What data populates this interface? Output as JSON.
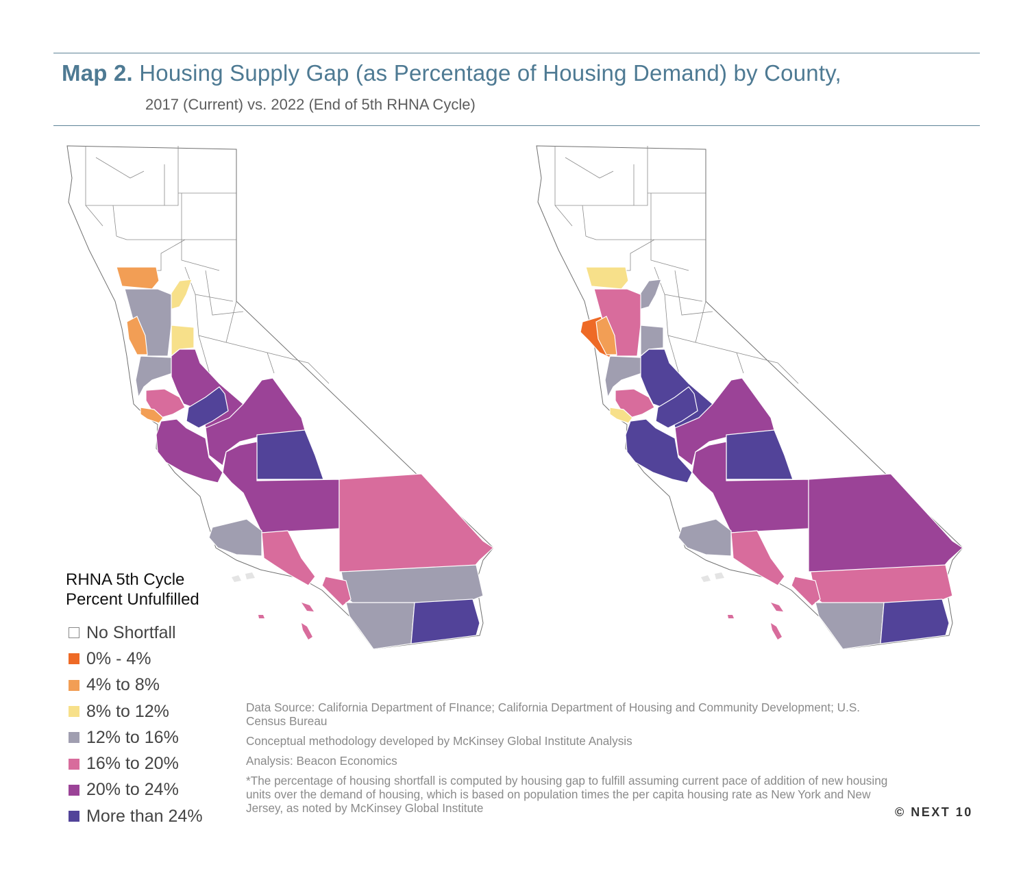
{
  "header": {
    "map_label": "Map 2.",
    "title": "Housing Supply Gap (as Percentage of Housing Demand) by County,",
    "subtitle": "2017 (Current) vs. 2022 (End of 5th RHNA Cycle)"
  },
  "colors": {
    "accent": "#4e7a93",
    "none": "#ffffff",
    "c0_4": "#ee6a26",
    "c4_8": "#f29e55",
    "c8_12": "#f7e08a",
    "c12_16": "#a09eb0",
    "c16_20": "#d86c9c",
    "c20_24": "#9b4397",
    "c24p": "#524399"
  },
  "legend": {
    "title_line1": "RHNA 5th Cycle",
    "title_line2": "Percent Unfulfilled",
    "items": [
      {
        "label": "No Shortfall",
        "color": "#ffffff"
      },
      {
        "label": "0% - 4%",
        "color": "#ee6a26"
      },
      {
        "label": "4% to 8%",
        "color": "#f29e55"
      },
      {
        "label": "8% to 12%",
        "color": "#f7e08a"
      },
      {
        "label": "12% to 16%",
        "color": "#a09eb0"
      },
      {
        "label": "16% to 20%",
        "color": "#d86c9c"
      },
      {
        "label": "20% to 24%",
        "color": "#9b4397"
      },
      {
        "label": "More than 24%",
        "color": "#524399"
      }
    ]
  },
  "notes": {
    "source": "Data Source: California Department of FInance; California Department of Housing and Community Development; U.S. Census Bureau",
    "methodology": "Conceptual methodology developed by McKinsey Global Institute Analysis",
    "analysis": "Analysis: Beacon Economics",
    "footnote": "*The percentage of housing shortfall is computed by housing gap to fulfill assuming current pace of addition of new housing units over the demand of housing, which is based on population times the per capita housing rate as New York and New Jersey, as noted by McKinsey Global Institute"
  },
  "copyright": "© NEXT 10",
  "maps": [
    {
      "id": "2017",
      "regions": [
        {
          "name": "north-coast-county",
          "cls": "c4_8"
        },
        {
          "name": "foothill-county",
          "cls": "c8_12"
        },
        {
          "name": "sacramento-valley-county",
          "cls": "c12_16"
        },
        {
          "name": "sacramento-county",
          "cls": "c8_12"
        },
        {
          "name": "napa-county",
          "cls": "c4_8"
        },
        {
          "name": "bay-area-north-county",
          "cls": "c12_16"
        },
        {
          "name": "san-joaquin-county",
          "cls": "c20_24"
        },
        {
          "name": "santa-clara-county",
          "cls": "c16_20"
        },
        {
          "name": "santa-cruz-county",
          "cls": "c4_8"
        },
        {
          "name": "merced-county",
          "cls": "c24p"
        },
        {
          "name": "fresno-county",
          "cls": "c20_24"
        },
        {
          "name": "central-coast-county",
          "cls": "c20_24"
        },
        {
          "name": "tulare-county",
          "cls": "c24p"
        },
        {
          "name": "kern-county",
          "cls": "c20_24"
        },
        {
          "name": "san-bernardino-county",
          "cls": "c16_20"
        },
        {
          "name": "ventura-county",
          "cls": "c12_16"
        },
        {
          "name": "los-angeles-county",
          "cls": "c16_20"
        },
        {
          "name": "riverside-county",
          "cls": "c12_16"
        },
        {
          "name": "orange-county",
          "cls": "c16_20"
        },
        {
          "name": "san-diego-county",
          "cls": "c12_16"
        },
        {
          "name": "imperial-county",
          "cls": "c24p"
        }
      ]
    },
    {
      "id": "2022",
      "regions": [
        {
          "name": "north-coast-county",
          "cls": "c8_12"
        },
        {
          "name": "foothill-county",
          "cls": "c12_16"
        },
        {
          "name": "sacramento-valley-county",
          "cls": "c16_20"
        },
        {
          "name": "sonoma-county",
          "cls": "c0_4"
        },
        {
          "name": "napa-county",
          "cls": "c4_8"
        },
        {
          "name": "sacramento-county",
          "cls": "c12_16"
        },
        {
          "name": "bay-area-north-county",
          "cls": "c12_16"
        },
        {
          "name": "san-joaquin-county",
          "cls": "c24p"
        },
        {
          "name": "santa-clara-county",
          "cls": "c16_20"
        },
        {
          "name": "santa-cruz-county",
          "cls": "c8_12"
        },
        {
          "name": "merced-county",
          "cls": "c24p"
        },
        {
          "name": "fresno-county",
          "cls": "c20_24"
        },
        {
          "name": "central-coast-county",
          "cls": "c24p"
        },
        {
          "name": "tulare-county",
          "cls": "c24p"
        },
        {
          "name": "kern-county",
          "cls": "c20_24"
        },
        {
          "name": "san-bernardino-county",
          "cls": "c20_24"
        },
        {
          "name": "ventura-county",
          "cls": "c12_16"
        },
        {
          "name": "los-angeles-county",
          "cls": "c16_20"
        },
        {
          "name": "riverside-county",
          "cls": "c16_20"
        },
        {
          "name": "orange-county",
          "cls": "c16_20"
        },
        {
          "name": "san-diego-county",
          "cls": "c12_16"
        },
        {
          "name": "imperial-county",
          "cls": "c24p"
        }
      ]
    }
  ]
}
